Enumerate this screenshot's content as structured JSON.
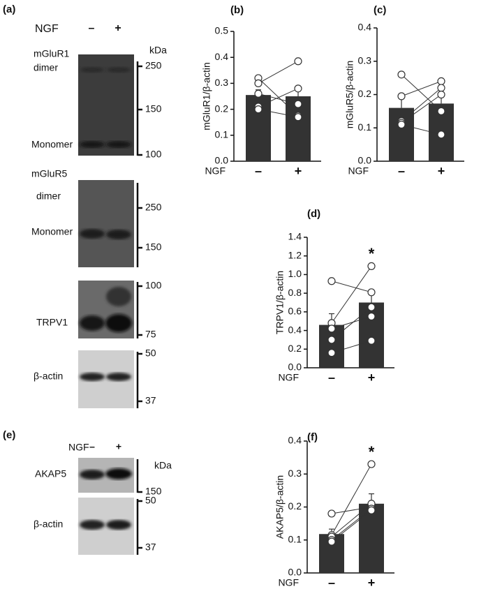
{
  "figure": {
    "panel_a": {
      "label": "(a)",
      "treatment": "NGF",
      "conditions": [
        "–",
        "+"
      ],
      "unit": "kDa",
      "blots": [
        {
          "labels": [
            "mGluR1",
            "dimer",
            "Monomer"
          ],
          "markers": [
            "250",
            "150",
            "100"
          ]
        },
        {
          "labels": [
            "mGluR5",
            "dimer",
            "Monomer"
          ],
          "markers": [
            "250",
            "150"
          ]
        },
        {
          "labels": [
            "TRPV1"
          ],
          "markers": [
            "100",
            "75"
          ]
        },
        {
          "labels": [
            "β-actin"
          ],
          "markers": [
            "50",
            "37"
          ]
        }
      ]
    },
    "panel_e": {
      "label": "(e)",
      "treatment": "NGF",
      "conditions": [
        "–",
        "+"
      ],
      "unit": "kDa",
      "blots": [
        {
          "labels": [
            "AKAP5"
          ],
          "markers": [
            "150"
          ]
        },
        {
          "labels": [
            "β-actin"
          ],
          "markers": [
            "50",
            "37"
          ]
        }
      ]
    }
  },
  "chart_data": [
    {
      "type": "bar",
      "panel_label": "(b)",
      "ylabel": "mGluR1/β-actin",
      "xlabel": "NGF",
      "categories": [
        "–",
        "+"
      ],
      "values": [
        0.255,
        0.25
      ],
      "errors": [
        0.02,
        0.03
      ],
      "color": "#333333",
      "points": [
        [
          0.32,
          0.175
        ],
        [
          0.3,
          0.385
        ],
        [
          0.26,
          0.22
        ],
        [
          0.21,
          0.28
        ],
        [
          0.2,
          0.17
        ]
      ],
      "ylim": [
        0,
        0.5
      ],
      "yticks": [
        {
          "value": 0,
          "label": "0.0"
        },
        0.1,
        0.2,
        0.3,
        0.4,
        0.5
      ]
    },
    {
      "type": "bar",
      "panel_label": "(c)",
      "ylabel": "mGluR5/β-actin",
      "xlabel": "NGF",
      "categories": [
        "–",
        "+"
      ],
      "values": [
        0.16,
        0.173
      ],
      "errors": [
        0.03,
        0.03
      ],
      "color": "#333333",
      "points": [
        [
          0.26,
          0.15
        ],
        [
          0.195,
          0.24
        ],
        [
          0.12,
          0.22
        ],
        [
          0.115,
          0.2
        ],
        [
          0.11,
          0.08
        ]
      ],
      "ylim": [
        0,
        0.4
      ],
      "yticks": [
        {
          "value": 0,
          "label": "0.0"
        },
        0.1,
        0.2,
        0.3,
        0.4
      ]
    },
    {
      "type": "bar",
      "panel_label": "(d)",
      "ylabel": "TRPV1/β-actin",
      "xlabel": "NGF",
      "categories": [
        "–",
        "+"
      ],
      "values": [
        0.46,
        0.7
      ],
      "errors": [
        0.12,
        0.12
      ],
      "color": "#333333",
      "annotation": "*",
      "points": [
        [
          0.93,
          0.81
        ],
        [
          0.48,
          1.09
        ],
        [
          0.42,
          0.55
        ],
        [
          0.3,
          0.65
        ],
        [
          0.16,
          0.29
        ]
      ],
      "ylim": [
        0,
        1.4
      ],
      "yticks": [
        {
          "value": 0,
          "label": "0.0"
        },
        0.2,
        0.4,
        0.6,
        0.8,
        {
          "value": 1,
          "label": "1.0"
        },
        1.2,
        1.4
      ]
    },
    {
      "type": "bar",
      "panel_label": "(f)",
      "ylabel": "AKAP5/β-actin",
      "xlabel": "NGF",
      "categories": [
        "–",
        "+"
      ],
      "values": [
        0.118,
        0.21
      ],
      "errors": [
        0.015,
        0.03
      ],
      "color": "#333333",
      "annotation": "*",
      "points": [
        [
          0.18,
          0.2
        ],
        [
          0.115,
          0.33
        ],
        [
          0.11,
          0.21
        ],
        [
          0.1,
          0.195
        ],
        [
          0.095,
          0.19
        ]
      ],
      "ylim": [
        0,
        0.4
      ],
      "yticks": [
        {
          "value": 0,
          "label": "0.0"
        },
        0.1,
        0.2,
        0.3,
        0.4
      ]
    }
  ]
}
